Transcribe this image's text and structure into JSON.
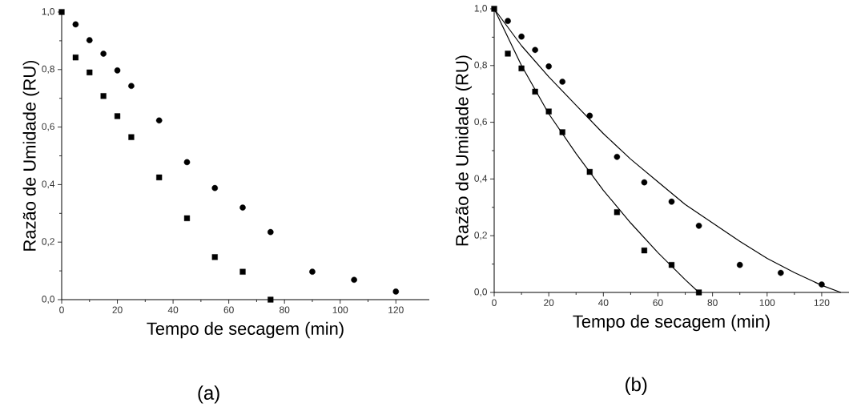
{
  "chart_data": [
    {
      "type": "scatter",
      "xlabel": "Tempo de secagem (min)",
      "ylabel": "Razão de Umidade (RU)",
      "annotations": [
        "(a)"
      ],
      "xlim": [
        0,
        132
      ],
      "ylim": [
        0,
        1.0
      ],
      "xticks": [
        0,
        20,
        40,
        60,
        80,
        100,
        120
      ],
      "yticks": [
        {
          "value": 0,
          "label": "0,0"
        },
        {
          "value": 0.2,
          "label": "0,2"
        },
        {
          "value": 0.4,
          "label": "0,4"
        },
        {
          "value": 0.6,
          "label": "0,6"
        },
        {
          "value": 0.8,
          "label": "0,8"
        },
        {
          "value": 1.0,
          "label": "1,0"
        }
      ],
      "series": [
        {
          "marker": "circle",
          "color": "#000000",
          "x": [
            5,
            10,
            15,
            20,
            25,
            35,
            45,
            55,
            65,
            75,
            90,
            105,
            120
          ],
          "values": [
            0.957,
            0.902,
            0.855,
            0.797,
            0.743,
            0.623,
            0.478,
            0.388,
            0.32,
            0.235,
            0.097,
            0.069,
            0.028
          ]
        },
        {
          "marker": "square",
          "color": "#000000",
          "x": [
            0,
            5,
            10,
            15,
            20,
            25,
            35,
            45,
            55,
            65,
            75
          ],
          "values": [
            1.0,
            0.842,
            0.79,
            0.708,
            0.638,
            0.565,
            0.425,
            0.283,
            0.148,
            0.097,
            0.0
          ]
        }
      ]
    },
    {
      "type": "scatter",
      "xlabel": "Tempo de secagem (min)",
      "ylabel": "Razão de Umidade (RU)",
      "annotations": [
        "(b)"
      ],
      "xlim": [
        0,
        130
      ],
      "ylim": [
        0,
        1.0
      ],
      "xticks": [
        0,
        20,
        40,
        60,
        80,
        100,
        120
      ],
      "yticks": [
        {
          "value": 0,
          "label": "0,0"
        },
        {
          "value": 0.2,
          "label": "0,2"
        },
        {
          "value": 0.4,
          "label": "0,4"
        },
        {
          "value": 0.6,
          "label": "0,6"
        },
        {
          "value": 0.8,
          "label": "0,8"
        },
        {
          "value": 1.0,
          "label": "1,0"
        }
      ],
      "series": [
        {
          "marker": "circle",
          "color": "#000000",
          "x": [
            5,
            10,
            15,
            20,
            25,
            35,
            45,
            55,
            65,
            75,
            90,
            105,
            120
          ],
          "values": [
            0.957,
            0.902,
            0.855,
            0.797,
            0.743,
            0.623,
            0.478,
            0.388,
            0.32,
            0.235,
            0.097,
            0.069,
            0.028
          ]
        },
        {
          "marker": "square",
          "color": "#000000",
          "x": [
            0,
            5,
            10,
            15,
            20,
            25,
            35,
            45,
            55,
            65,
            75
          ],
          "values": [
            1.0,
            0.842,
            0.79,
            0.708,
            0.638,
            0.565,
            0.425,
            0.283,
            0.148,
            0.097,
            0.0
          ]
        },
        {
          "type": "line",
          "marker": "none",
          "line_style": "solid",
          "color": "#000000",
          "x": [
            0,
            10,
            20,
            30,
            40,
            50,
            60,
            70,
            80,
            90,
            100,
            110,
            120,
            127
          ],
          "values": [
            1.0,
            0.87,
            0.76,
            0.66,
            0.56,
            0.47,
            0.39,
            0.31,
            0.245,
            0.18,
            0.12,
            0.07,
            0.025,
            0.0
          ]
        },
        {
          "type": "line",
          "marker": "none",
          "line_style": "solid",
          "color": "#000000",
          "x": [
            0,
            10,
            20,
            30,
            40,
            50,
            60,
            70,
            75
          ],
          "values": [
            1.0,
            0.8,
            0.63,
            0.49,
            0.36,
            0.245,
            0.14,
            0.045,
            0.0
          ]
        }
      ]
    }
  ]
}
